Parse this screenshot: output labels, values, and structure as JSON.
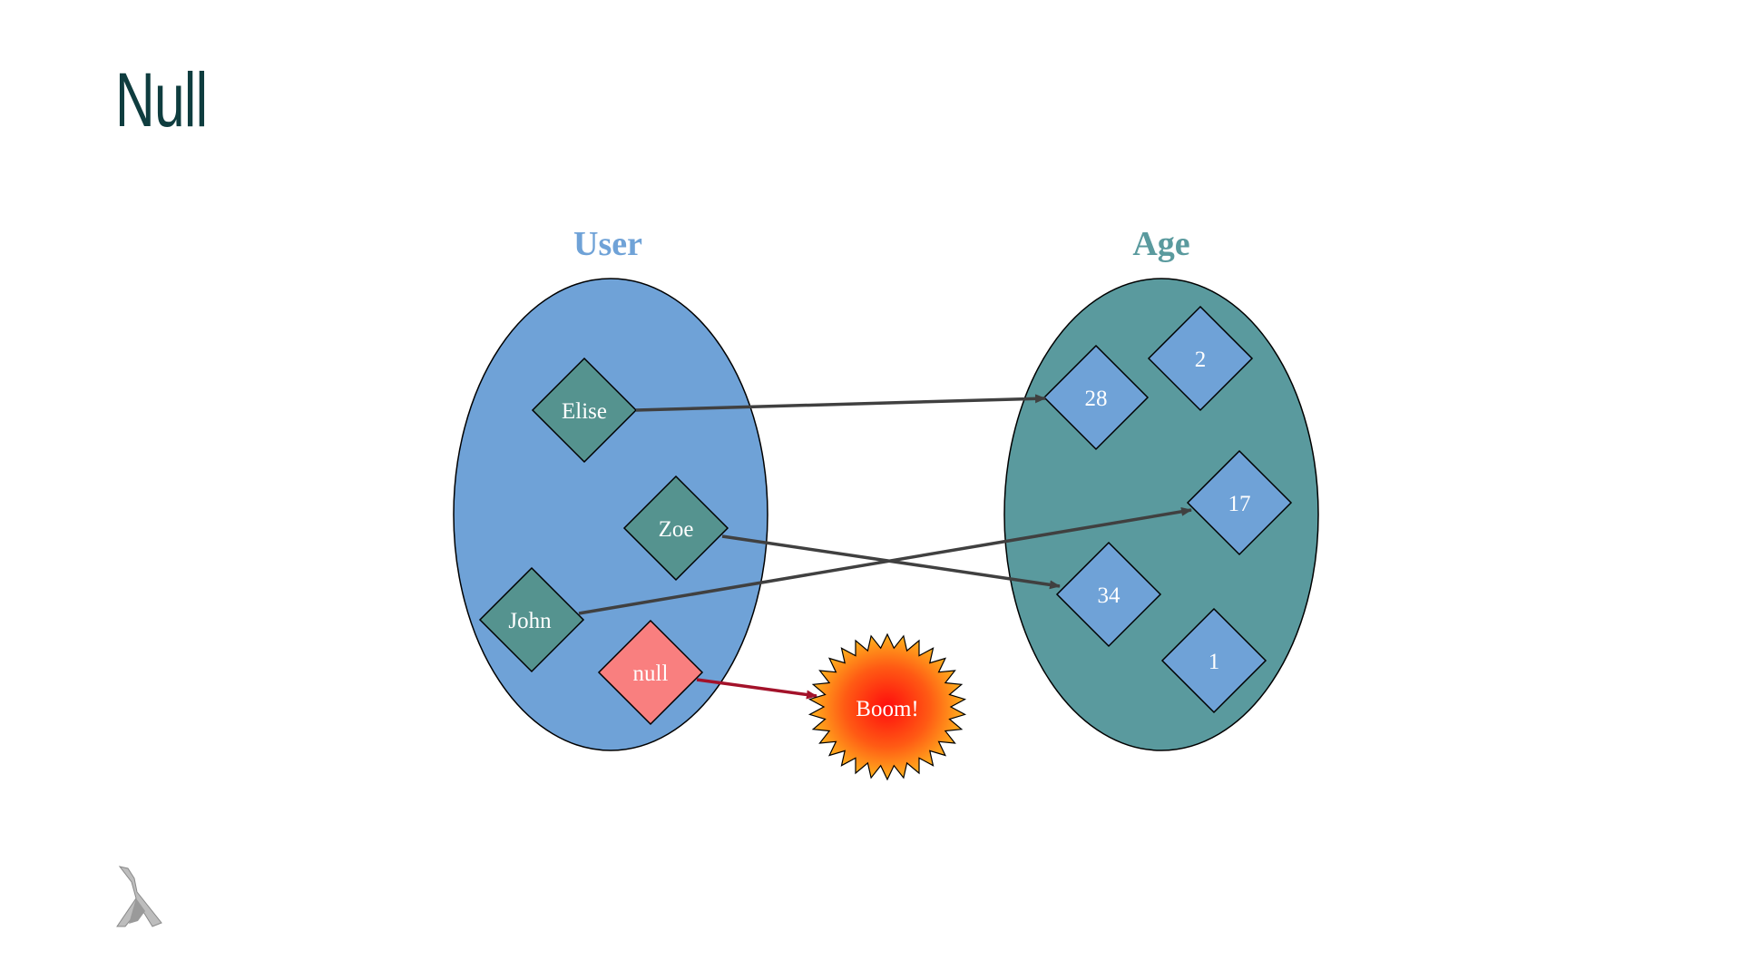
{
  "slide": {
    "title": "Null"
  },
  "colors": {
    "title": "#0f3d3f",
    "user_set": "#6fa2d7",
    "age_set": "#5a9a9e",
    "user_node": "#55938f",
    "age_node": "#6fa2d7",
    "null_node": "#f97f7f",
    "arrow": "#404040",
    "null_arrow": "#a3122a",
    "boom_outer": "#ffb21e",
    "boom_inner": "#ff1a0d"
  },
  "sets": {
    "user": {
      "title": "User",
      "members": [
        {
          "id": "elise",
          "label": "Elise"
        },
        {
          "id": "zoe",
          "label": "Zoe"
        },
        {
          "id": "john",
          "label": "John"
        },
        {
          "id": "null",
          "label": "null"
        }
      ]
    },
    "age": {
      "title": "Age",
      "members": [
        {
          "id": "a28",
          "label": "28"
        },
        {
          "id": "a2",
          "label": "2"
        },
        {
          "id": "a17",
          "label": "17"
        },
        {
          "id": "a34",
          "label": "34"
        },
        {
          "id": "a1",
          "label": "1"
        }
      ]
    }
  },
  "mappings": [
    {
      "from": "Elise",
      "to": "28"
    },
    {
      "from": "Zoe",
      "to": "34"
    },
    {
      "from": "John",
      "to": "17"
    },
    {
      "from": "null",
      "to": "Boom!"
    }
  ],
  "explosion": {
    "label": "Boom!"
  },
  "logo": {
    "icon": "lambda-logo-icon"
  }
}
